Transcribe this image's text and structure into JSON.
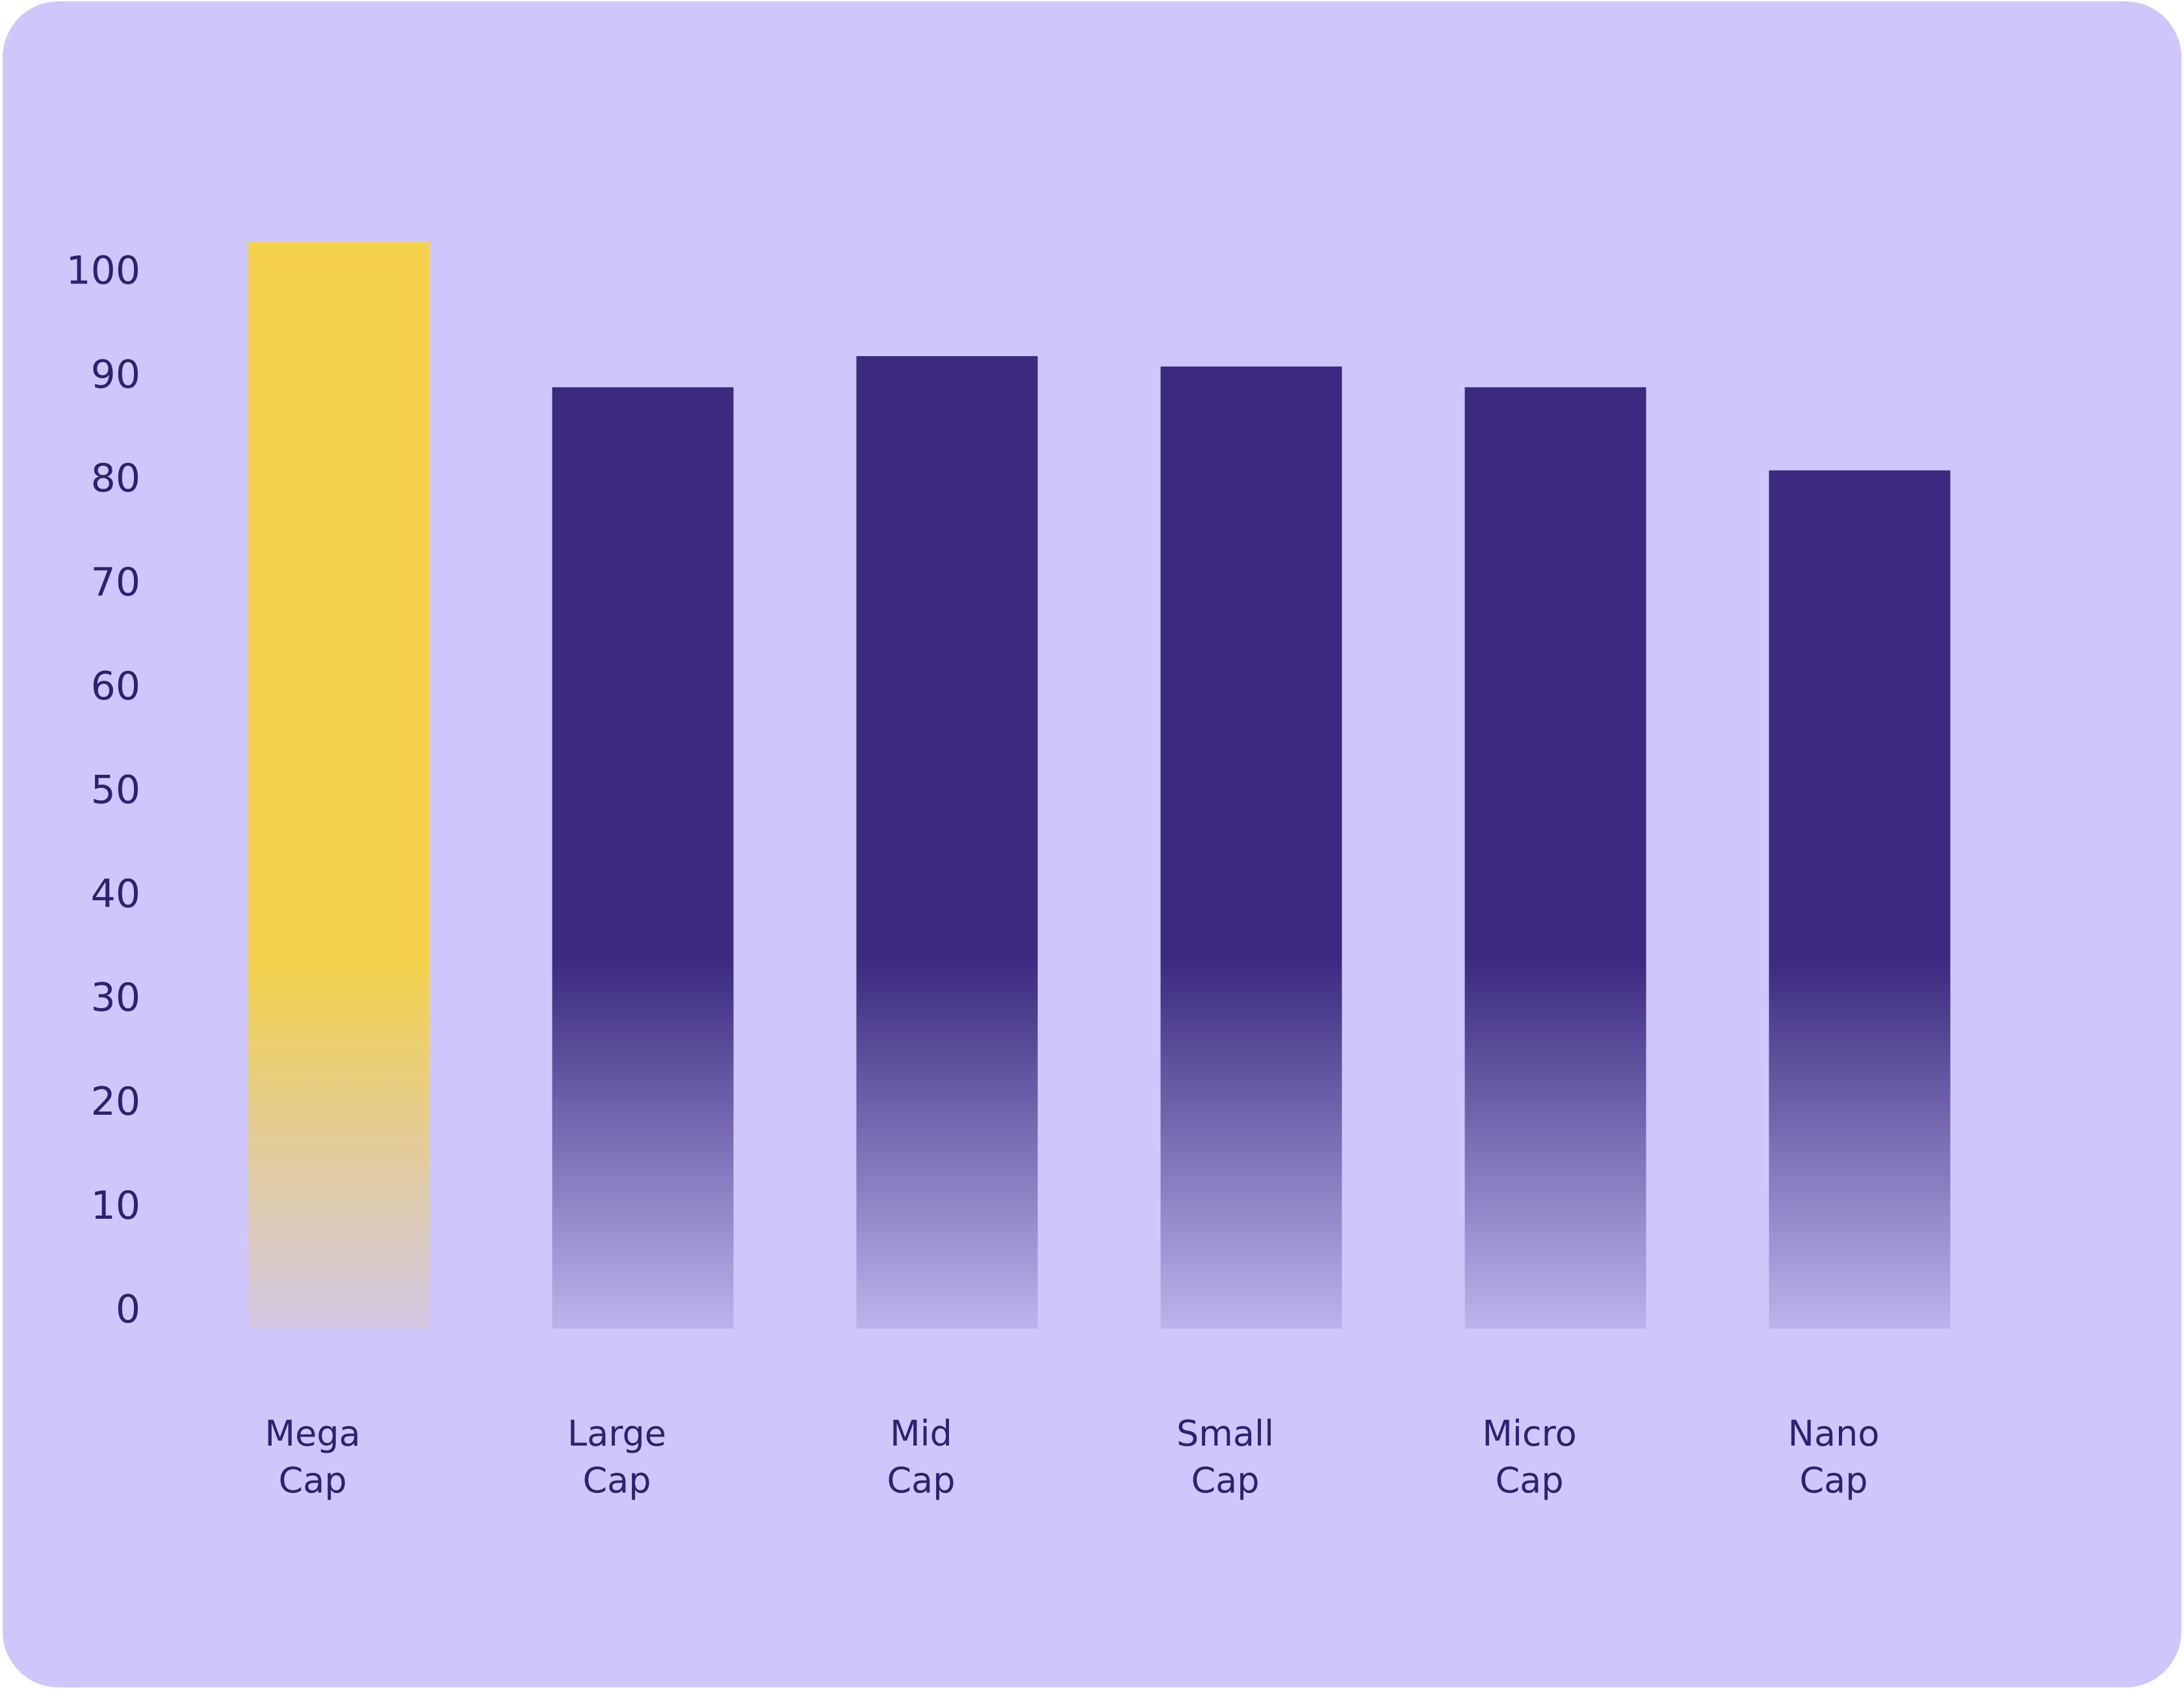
{
  "chart_data": {
    "type": "bar",
    "categories": [
      "Mega Cap",
      "Large Cap",
      "Mid Cap",
      "Small Cap",
      "Micro Cap",
      "Nano Cap"
    ],
    "values": [
      103,
      89,
      92,
      91,
      89,
      81
    ],
    "colors": [
      "#f3d14a",
      "#3b2a7e",
      "#3b2a7e",
      "#3b2a7e",
      "#3b2a7e",
      "#3b2a7e"
    ],
    "ylim": [
      0,
      100
    ],
    "yticks": [
      0,
      10,
      20,
      30,
      40,
      50,
      60,
      70,
      80,
      90,
      100
    ],
    "grid": false
  }
}
